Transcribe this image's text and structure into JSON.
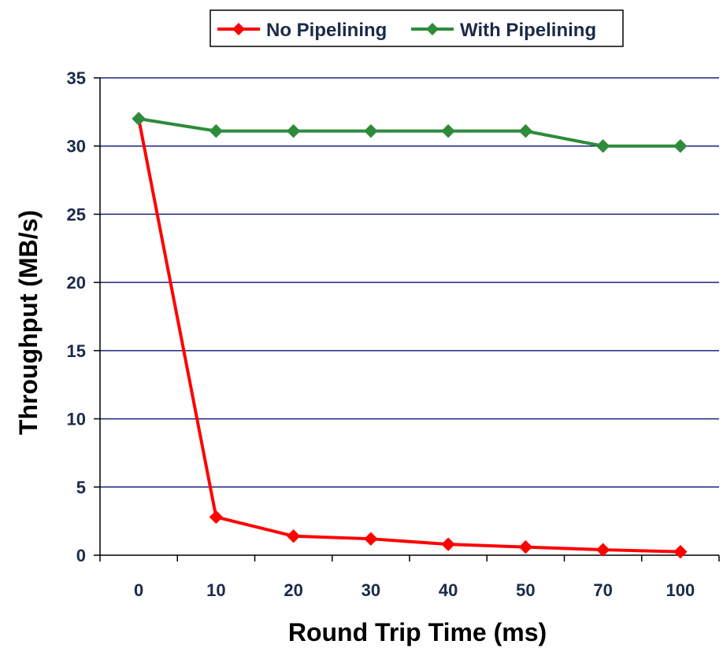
{
  "chart_data": {
    "type": "line",
    "categories": [
      "0",
      "10",
      "20",
      "30",
      "40",
      "50",
      "70",
      "100"
    ],
    "series": [
      {
        "name": "No Pipelining",
        "color": "#ff0000",
        "values": [
          32,
          2.8,
          1.4,
          1.2,
          0.8,
          0.6,
          0.4,
          0.25
        ]
      },
      {
        "name": "With Pipelining",
        "color": "#2e8b3c",
        "values": [
          32,
          31.1,
          31.1,
          31.1,
          31.1,
          31.1,
          30,
          30
        ]
      }
    ],
    "title": "",
    "xlabel": "Round Trip Time (ms)",
    "ylabel": "Throughput (MB/s)",
    "ylim": [
      0,
      35
    ],
    "yticks": [
      "0",
      "5",
      "10",
      "15",
      "20",
      "25",
      "30",
      "35"
    ],
    "grid": "horizontal",
    "legend": "top-center",
    "gridline_color": "#1a237e",
    "axis_color": "#000000"
  }
}
